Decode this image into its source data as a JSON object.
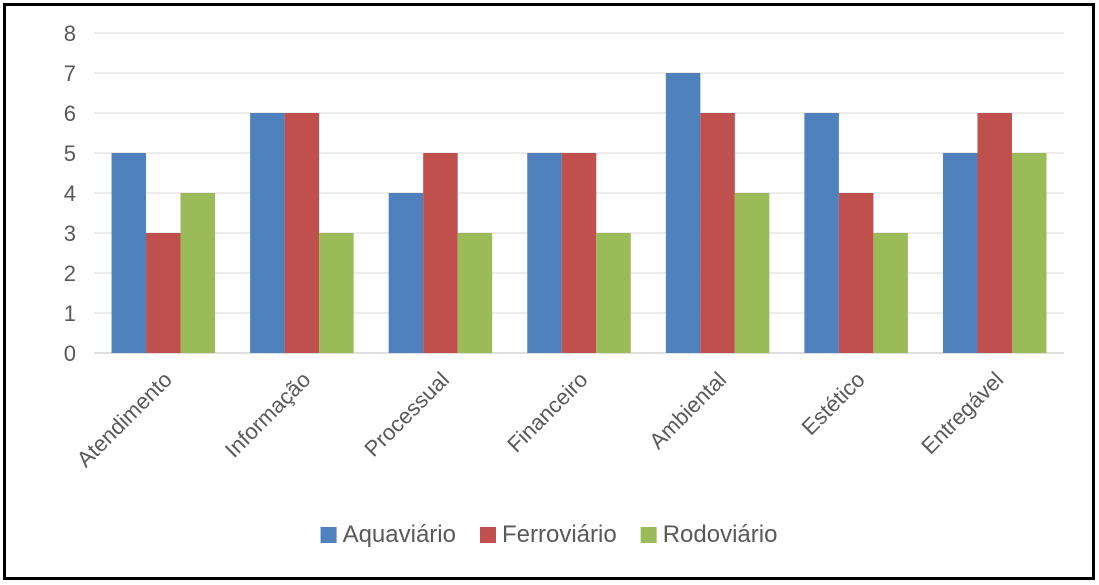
{
  "chart_data": {
    "type": "bar",
    "categories": [
      "Atendimento",
      "Informação",
      "Processual",
      "Financeiro",
      "Ambiental",
      "Estético",
      "Entregável"
    ],
    "series": [
      {
        "name": "Aquaviário",
        "color": "#4F81BD",
        "values": [
          5,
          6,
          4,
          5,
          7,
          6,
          5
        ]
      },
      {
        "name": "Ferroviário",
        "color": "#C0504D",
        "values": [
          3,
          6,
          5,
          5,
          6,
          4,
          6
        ]
      },
      {
        "name": "Rodoviário",
        "color": "#9BBB59",
        "values": [
          4,
          3,
          3,
          3,
          4,
          3,
          5
        ]
      }
    ],
    "ylim": [
      0,
      8
    ],
    "yticks": [
      0,
      1,
      2,
      3,
      4,
      5,
      6,
      7,
      8
    ],
    "grid": true,
    "legend": "bottom",
    "title": "",
    "xlabel": "",
    "ylabel": ""
  }
}
